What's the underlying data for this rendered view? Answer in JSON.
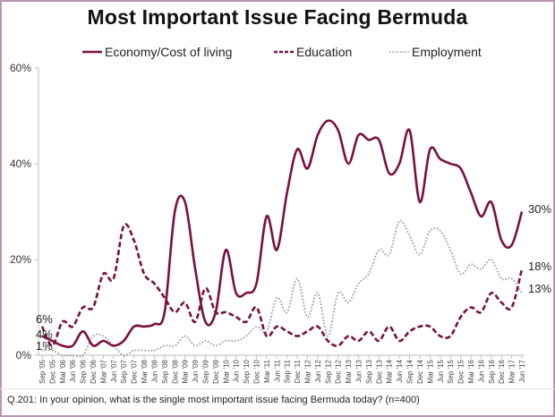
{
  "chart_data": {
    "type": "line",
    "title": "Most Important Issue Facing Bermuda",
    "xlabel": "",
    "ylabel": "",
    "ylim": [
      0,
      60
    ],
    "yticks": [
      "0%",
      "20%",
      "40%",
      "60%"
    ],
    "ytick_values": [
      0,
      20,
      40,
      60
    ],
    "grid": false,
    "legend_position": "top",
    "x": [
      "Sep '05",
      "Dec '05",
      "Mar '06",
      "Jun '06",
      "Sep '06",
      "Dec '06",
      "Mar '07",
      "Jun '07",
      "Sep '07",
      "Dec '07",
      "Mar '08",
      "Jun '08",
      "Sep '08",
      "Dec '08",
      "Mar '09",
      "Jun '09",
      "Sep '09",
      "Dec '09",
      "Mar '10",
      "Jun '10",
      "Sep '10",
      "Dec '10",
      "Mar '11",
      "Jun '11",
      "Sep '11",
      "Dec '11",
      "Mar '12",
      "Jun '12",
      "Sep '12",
      "Dec '12",
      "Mar '13",
      "Jun '13",
      "Sep '13",
      "Dec '13",
      "Mar '14",
      "Jun '14",
      "Sep '14",
      "Dec '14",
      "Mar '15",
      "Jun '15",
      "Sep '15",
      "Dec '15",
      "Mar '16",
      "Jun '16",
      "Sep '16",
      "Dec '16",
      "Mar '17",
      "Jun '17"
    ],
    "series": [
      {
        "name": "Economy/Cost of living",
        "style": "solid",
        "color": "#7a1040",
        "values": [
          4,
          3,
          2,
          2,
          5,
          2,
          3,
          2,
          3,
          6,
          6,
          6.5,
          9,
          30,
          32,
          18,
          7,
          9,
          22,
          13,
          13,
          15,
          29,
          22,
          34,
          43,
          39,
          46,
          49,
          47,
          40,
          46,
          45,
          45,
          38,
          40,
          47,
          32,
          43,
          41,
          40,
          39,
          34,
          29,
          32,
          24,
          23,
          30
        ],
        "start_label": "4%",
        "end_label": "30%"
      },
      {
        "name": "Education",
        "style": "dashed",
        "color": "#7a1040",
        "values": [
          6,
          2,
          7,
          6,
          10,
          10,
          17,
          16,
          27,
          24,
          17,
          15,
          12,
          9,
          11,
          7,
          14,
          9,
          9,
          8,
          7,
          10,
          4,
          6,
          5,
          4,
          5,
          6,
          3,
          2,
          4,
          3,
          5,
          3,
          6,
          3,
          5,
          6,
          6,
          4,
          4,
          8,
          10,
          9,
          13,
          11,
          10,
          18
        ],
        "start_label": "6%",
        "end_label": "18%"
      },
      {
        "name": "Employment",
        "style": "dotted",
        "color": "#999999",
        "values": [
          1,
          1,
          0,
          0,
          0,
          4,
          4,
          2,
          0,
          1,
          1,
          1,
          2,
          2,
          4,
          2,
          3,
          2,
          3,
          3,
          4,
          6,
          5,
          12,
          9,
          16,
          8,
          13,
          4,
          13,
          11,
          15,
          17,
          22,
          21,
          28,
          25,
          21,
          26,
          26,
          22,
          17,
          19,
          18,
          20,
          16,
          16,
          13
        ],
        "start_label": "1%",
        "end_label": "13%"
      }
    ]
  },
  "footnote": "Q.201: In your opinion, what is the single most important issue facing Bermuda today? (n=400)"
}
